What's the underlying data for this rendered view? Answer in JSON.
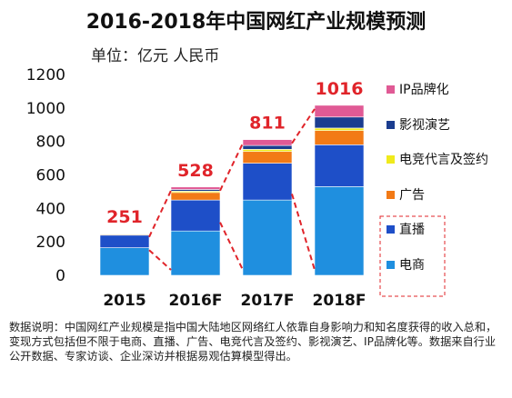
{
  "title": "2016-2018年中国网红产业规模预测",
  "unit_label": "单位：亿元 人民币",
  "footnote": "数据说明：中国网红产业规模是指中国大陆地区网络红人依靠自身影响力和知名度获得的收入总和，变现方式包括但不限于电商、直播、广告、电竞代言及签约、影视演艺、IP品牌化等。数据来自行业公开数据、专家访谈、企业深访并根据易观估算模型得出。",
  "chart_data": {
    "type": "bar",
    "stacked": true,
    "categories": [
      "2015",
      "2016F",
      "2017F",
      "2018F"
    ],
    "totals": [
      251,
      528,
      811,
      1016
    ],
    "ylim": [
      0,
      1200
    ],
    "yticks": [
      0,
      200,
      400,
      600,
      800,
      1000,
      1200
    ],
    "legend_position": "right",
    "series": [
      {
        "name": "电商",
        "color": "#1f8fdf",
        "values": [
          165,
          265,
          450,
          530
        ]
      },
      {
        "name": "直播",
        "color": "#1e4fc8",
        "values": [
          75,
          185,
          220,
          250
        ]
      },
      {
        "name": "广告",
        "color": "#f27a16",
        "values": [
          6,
          45,
          70,
          85
        ]
      },
      {
        "name": "电竞代言及签约",
        "color": "#f0ea1c",
        "values": [
          1,
          8,
          13,
          15
        ]
      },
      {
        "name": "影视演艺",
        "color": "#1b3d8f",
        "values": [
          2,
          10,
          23,
          66
        ]
      },
      {
        "name": "IP品牌化",
        "color": "#e05a95",
        "values": [
          2,
          15,
          35,
          70
        ]
      }
    ],
    "legend_order": [
      "IP品牌化",
      "影视演艺",
      "电竞代言及签约",
      "广告",
      "直播",
      "电商"
    ],
    "trend_line_color": "#e0242a"
  }
}
